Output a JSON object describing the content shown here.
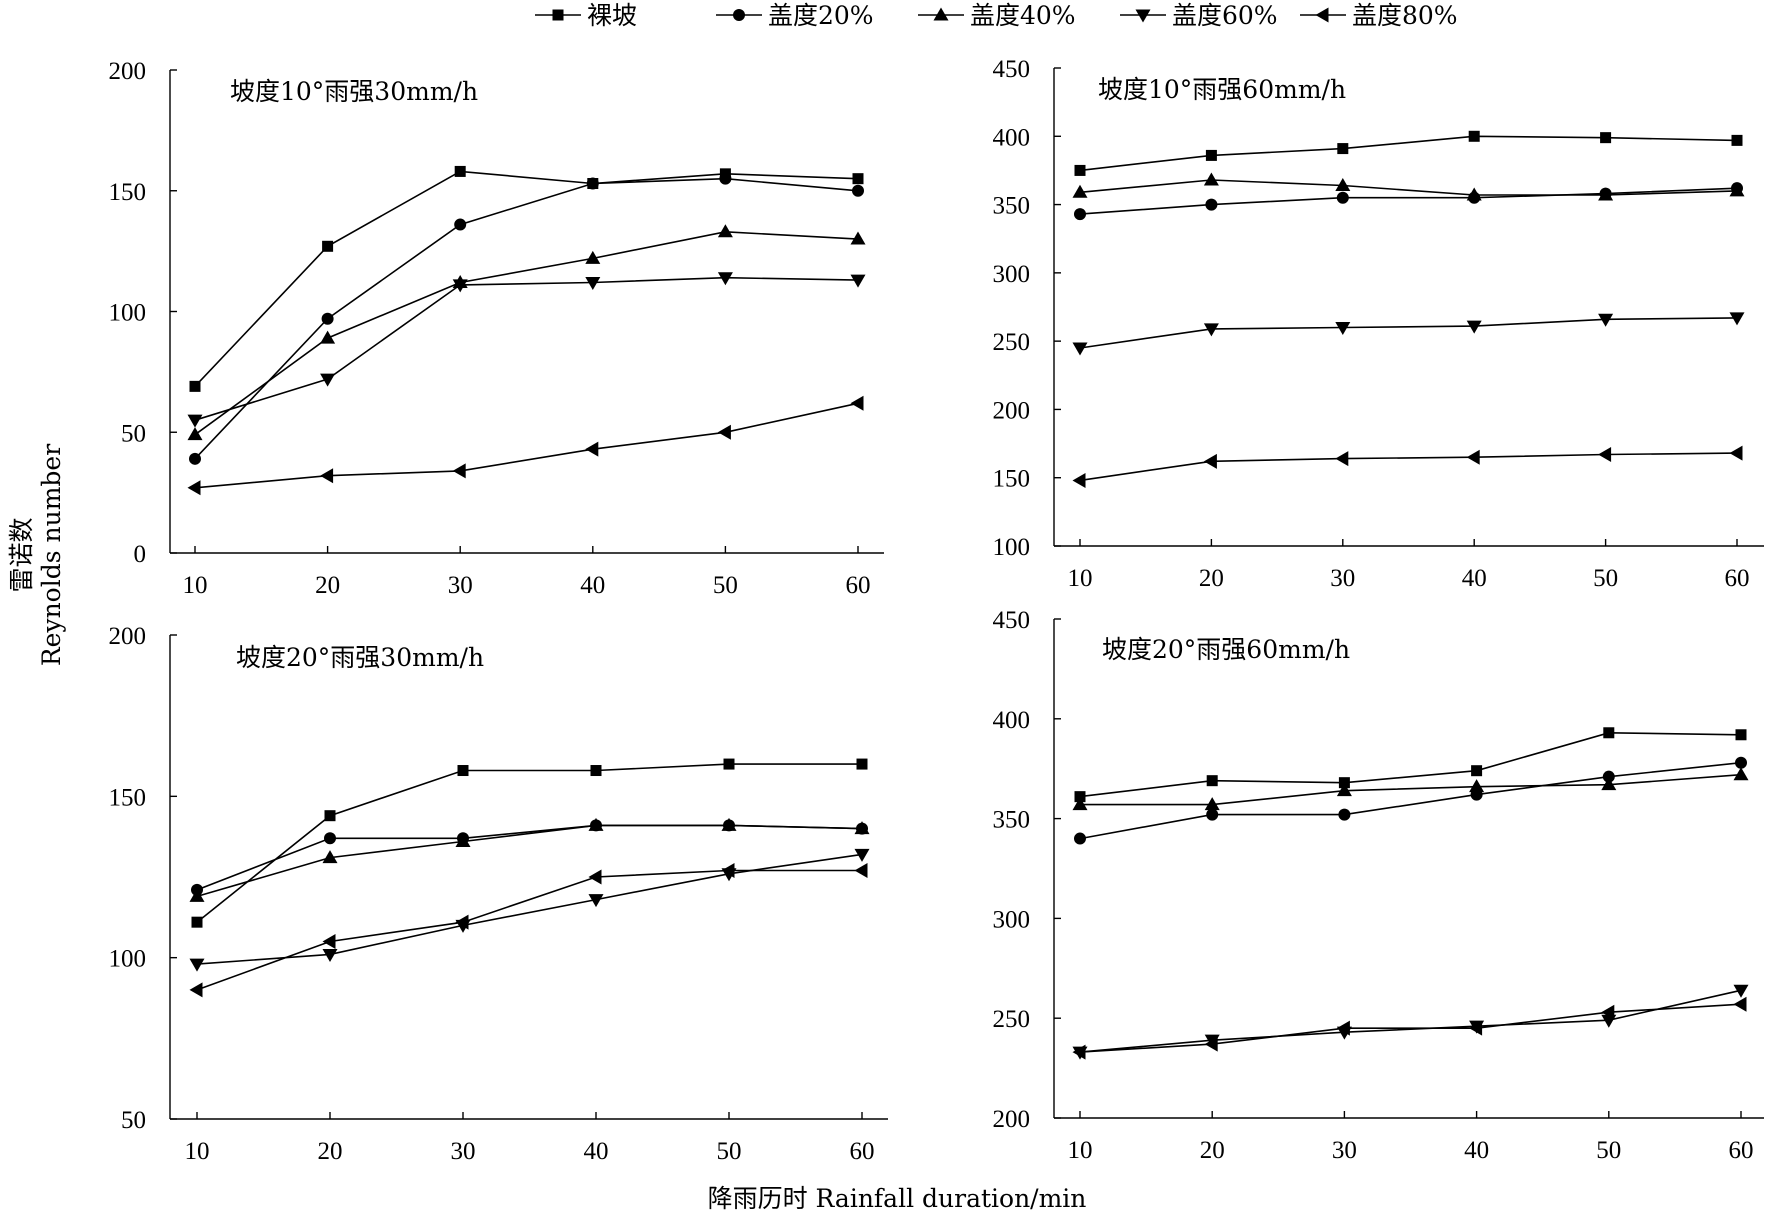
{
  "legend": [
    {
      "name": "裸坡",
      "marker": "square"
    },
    {
      "name": "盖度20%",
      "marker": "circle"
    },
    {
      "name": "盖度40%",
      "marker": "triangle-up"
    },
    {
      "name": "盖度60%",
      "marker": "triangle-down"
    },
    {
      "name": "盖度80%",
      "marker": "triangle-left"
    }
  ],
  "y_axis_title": {
    "zh": "雷诺数",
    "en": "Reynolds number"
  },
  "x_axis_title": "降雨历时 Rainfall duration/min",
  "chart_data": [
    {
      "type": "line",
      "title": "坡度10°雨强30mm/h",
      "x": [
        10,
        20,
        30,
        40,
        50,
        60
      ],
      "xlim": [
        10,
        60
      ],
      "ylim": [
        0,
        200
      ],
      "yticks": [
        0,
        50,
        100,
        150,
        200
      ],
      "xticks": [
        10,
        20,
        30,
        40,
        50,
        60
      ],
      "series": [
        {
          "name": "裸坡",
          "values": [
            69,
            127,
            158,
            153,
            157,
            155
          ]
        },
        {
          "name": "盖度20%",
          "values": [
            39,
            97,
            136,
            153,
            155,
            150
          ]
        },
        {
          "name": "盖度40%",
          "values": [
            49,
            89,
            112,
            122,
            133,
            130
          ]
        },
        {
          "name": "盖度60%",
          "values": [
            55,
            72,
            111,
            112,
            114,
            113
          ]
        },
        {
          "name": "盖度80%",
          "values": [
            27,
            32,
            34,
            43,
            50,
            62
          ]
        }
      ]
    },
    {
      "type": "line",
      "title": "坡度10°雨强60mm/h",
      "x": [
        10,
        20,
        30,
        40,
        50,
        60
      ],
      "xlim": [
        10,
        60
      ],
      "ylim": [
        100,
        450
      ],
      "yticks": [
        100,
        150,
        200,
        250,
        300,
        350,
        400,
        450
      ],
      "xticks": [
        10,
        20,
        30,
        40,
        50,
        60
      ],
      "series": [
        {
          "name": "裸坡",
          "values": [
            375,
            386,
            391,
            400,
            399,
            397
          ]
        },
        {
          "name": "盖度20%",
          "values": [
            343,
            350,
            355,
            355,
            358,
            362
          ]
        },
        {
          "name": "盖度40%",
          "values": [
            359,
            368,
            364,
            357,
            357,
            360
          ]
        },
        {
          "name": "盖度60%",
          "values": [
            245,
            259,
            260,
            261,
            266,
            267
          ]
        },
        {
          "name": "盖度80%",
          "values": [
            148,
            162,
            164,
            165,
            167,
            168
          ]
        }
      ]
    },
    {
      "type": "line",
      "title": "坡度20°雨强30mm/h",
      "x": [
        10,
        20,
        30,
        40,
        50,
        60
      ],
      "xlim": [
        10,
        60
      ],
      "ylim": [
        50,
        200
      ],
      "yticks": [
        50,
        100,
        150,
        200
      ],
      "xticks": [
        10,
        20,
        30,
        40,
        50,
        60
      ],
      "series": [
        {
          "name": "裸坡",
          "values": [
            111,
            144,
            158,
            158,
            160,
            160
          ]
        },
        {
          "name": "盖度20%",
          "values": [
            121,
            137,
            137,
            141,
            141,
            140
          ]
        },
        {
          "name": "盖度40%",
          "values": [
            119,
            131,
            136,
            141,
            141,
            140
          ]
        },
        {
          "name": "盖度60%",
          "values": [
            98,
            101,
            110,
            118,
            126,
            132
          ]
        },
        {
          "name": "盖度80%",
          "values": [
            90,
            105,
            111,
            125,
            127,
            127
          ]
        }
      ]
    },
    {
      "type": "line",
      "title": "坡度20°雨强60mm/h",
      "x": [
        10,
        20,
        30,
        40,
        50,
        60
      ],
      "xlim": [
        10,
        60
      ],
      "ylim": [
        200,
        450
      ],
      "yticks": [
        200,
        250,
        300,
        350,
        400,
        450
      ],
      "xticks": [
        10,
        20,
        30,
        40,
        50,
        60
      ],
      "series": [
        {
          "name": "裸坡",
          "values": [
            361,
            369,
            368,
            374,
            393,
            392
          ]
        },
        {
          "name": "盖度20%",
          "values": [
            340,
            352,
            352,
            362,
            371,
            378
          ]
        },
        {
          "name": "盖度40%",
          "values": [
            357,
            357,
            364,
            366,
            367,
            372
          ]
        },
        {
          "name": "盖度60%",
          "values": [
            233,
            239,
            243,
            246,
            249,
            264
          ]
        },
        {
          "name": "盖度80%",
          "values": [
            233,
            237,
            245,
            245,
            253,
            257
          ]
        }
      ]
    }
  ]
}
